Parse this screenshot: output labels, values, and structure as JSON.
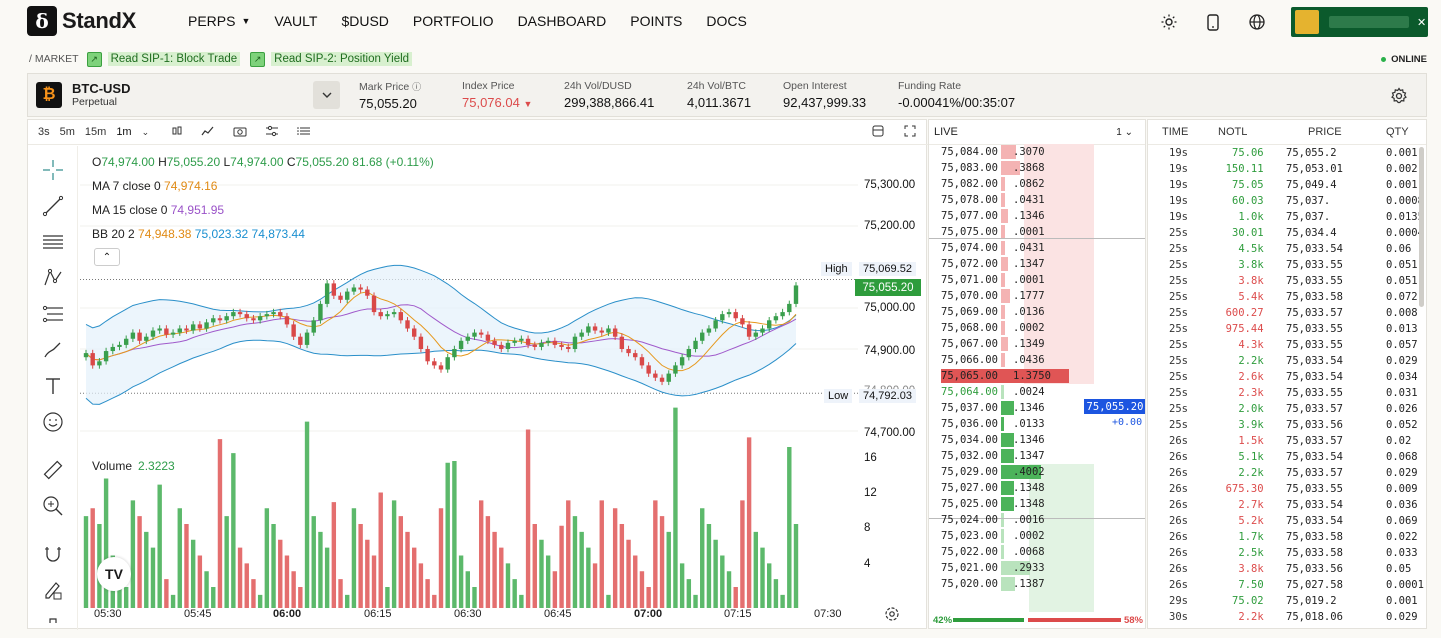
{
  "brand": {
    "name": "StandX",
    "mark": "δ"
  },
  "nav": {
    "items": [
      {
        "label": "PERPS",
        "dropdown": true
      },
      {
        "label": "VAULT"
      },
      {
        "label": "$DUSD"
      },
      {
        "label": "PORTFOLIO"
      },
      {
        "label": "DASHBOARD"
      },
      {
        "label": "POINTS"
      },
      {
        "label": "DOCS"
      }
    ],
    "icons": [
      "sun-icon",
      "mobile-icon",
      "globe-icon"
    ]
  },
  "breadcrumb": "/ MARKET",
  "announcements": [
    "Read SIP-1: Block Trade",
    "Read SIP-2: Position Yield"
  ],
  "status": "ONLINE",
  "ticker": {
    "symbol": "BTC-USD",
    "type": "Perpetual",
    "stats": [
      {
        "label": "Mark Price",
        "value": "75,055.20"
      },
      {
        "label": "Index Price",
        "value": "75,076.04"
      },
      {
        "label": "24h Vol/DUSD",
        "value": "299,388,866.41"
      },
      {
        "label": "24h Vol/BTC",
        "value": "4,011.3671"
      },
      {
        "label": "Open Interest",
        "value": "92,437,999.33"
      },
      {
        "label": "Funding Rate",
        "value": "-0.00041%/00:35:07"
      }
    ]
  },
  "chart": {
    "intervals": [
      "3s",
      "5m",
      "15m",
      "1m"
    ],
    "ohlc": {
      "o": "74,974.00",
      "h": "75,055.20",
      "l": "74,974.00",
      "c": "75,055.20",
      "chg": "81.68 (+0.11%)"
    },
    "ma7": {
      "label": "MA 7 close 0",
      "value": "74,974.16"
    },
    "ma15": {
      "label": "MA 15 close 0",
      "value": "74,951.95"
    },
    "bb": {
      "label": "BB 20 2",
      "v1": "74,948.38",
      "v2": "75,023.32",
      "v3": "74,873.44"
    },
    "yticks": [
      "75,300.00",
      "75,200.00",
      "75,000.00",
      "74,900.00",
      "74,700.00"
    ],
    "current": "75,055.20",
    "high": {
      "label": "High",
      "value": "75,069.52"
    },
    "low": {
      "label": "Low",
      "value": "74,792.03"
    },
    "low_axis_partial": "74,800.00",
    "volume": {
      "label": "Volume",
      "value": "2.3223",
      "ticks": [
        "16",
        "12",
        "8",
        "4"
      ]
    },
    "xticks": [
      "05:30",
      "05:45",
      "06:00",
      "06:15",
      "06:30",
      "06:45",
      "07:00",
      "07:15",
      "07:30"
    ]
  },
  "orderbook": {
    "title": "LIVE",
    "group": "1",
    "asks": [
      {
        "p": "75,084.00",
        "s": ".3070"
      },
      {
        "p": "75,083.00",
        "s": ".3868"
      },
      {
        "p": "75,082.00",
        "s": ".0862"
      },
      {
        "p": "75,078.00",
        "s": ".0431"
      },
      {
        "p": "75,077.00",
        "s": ".1346"
      },
      {
        "p": "75,075.00",
        "s": ".0001"
      },
      {
        "p": "75,074.00",
        "s": ".0431"
      },
      {
        "p": "75,072.00",
        "s": ".1347"
      },
      {
        "p": "75,071.00",
        "s": ".0001"
      },
      {
        "p": "75,070.00",
        "s": ".1777"
      },
      {
        "p": "75,069.00",
        "s": ".0136"
      },
      {
        "p": "75,068.00",
        "s": ".0002"
      },
      {
        "p": "75,067.00",
        "s": ".1349"
      },
      {
        "p": "75,066.00",
        "s": ".0436"
      },
      {
        "p": "75,065.00",
        "s": "1.3750"
      }
    ],
    "bids": [
      {
        "p": "75,064.00",
        "s": ".0024"
      },
      {
        "p": "75,037.00",
        "s": ".1346"
      },
      {
        "p": "75,036.00",
        "s": ".0133"
      },
      {
        "p": "75,034.00",
        "s": ".1346"
      },
      {
        "p": "75,032.00",
        "s": ".1347"
      },
      {
        "p": "75,029.00",
        "s": ".4002"
      },
      {
        "p": "75,027.00",
        "s": ".1348"
      },
      {
        "p": "75,025.00",
        "s": ".1348"
      },
      {
        "p": "75,024.00",
        "s": ".0016"
      },
      {
        "p": "75,023.00",
        "s": ".0002"
      },
      {
        "p": "75,022.00",
        "s": ".0068"
      },
      {
        "p": "75,021.00",
        "s": ".2933"
      },
      {
        "p": "75,020.00",
        "s": ".1387"
      }
    ],
    "mid": "75,055.20",
    "mid_change": "+0.00",
    "bid_pct": "42%",
    "ask_pct": "58%"
  },
  "trades": {
    "headers": [
      "TIME",
      "NOTL",
      "PRICE",
      "QTY"
    ],
    "rows": [
      {
        "t": "19s",
        "n": "75.06",
        "p": "75,055.2",
        "q": "0.001",
        "side": "buy"
      },
      {
        "t": "19s",
        "n": "150.11",
        "p": "75,053.01",
        "q": "0.002",
        "side": "buy"
      },
      {
        "t": "19s",
        "n": "75.05",
        "p": "75,049.4",
        "q": "0.001",
        "side": "buy"
      },
      {
        "t": "19s",
        "n": "60.03",
        "p": "75,037.",
        "q": "0.0008",
        "side": "buy"
      },
      {
        "t": "19s",
        "n": "1.0k",
        "p": "75,037.",
        "q": "0.0135",
        "side": "buy"
      },
      {
        "t": "25s",
        "n": "30.01",
        "p": "75,034.4",
        "q": "0.0004",
        "side": "buy"
      },
      {
        "t": "25s",
        "n": "4.5k",
        "p": "75,033.54",
        "q": "0.06",
        "side": "buy"
      },
      {
        "t": "25s",
        "n": "3.8k",
        "p": "75,033.55",
        "q": "0.051",
        "side": "buy"
      },
      {
        "t": "25s",
        "n": "3.8k",
        "p": "75,033.55",
        "q": "0.051",
        "side": "sell"
      },
      {
        "t": "25s",
        "n": "5.4k",
        "p": "75,033.58",
        "q": "0.072",
        "side": "sell"
      },
      {
        "t": "25s",
        "n": "600.27",
        "p": "75,033.57",
        "q": "0.008",
        "side": "sell"
      },
      {
        "t": "25s",
        "n": "975.44",
        "p": "75,033.55",
        "q": "0.013",
        "side": "sell"
      },
      {
        "t": "25s",
        "n": "4.3k",
        "p": "75,033.55",
        "q": "0.057",
        "side": "sell"
      },
      {
        "t": "25s",
        "n": "2.2k",
        "p": "75,033.54",
        "q": "0.029",
        "side": "buy"
      },
      {
        "t": "25s",
        "n": "2.6k",
        "p": "75,033.54",
        "q": "0.034",
        "side": "sell"
      },
      {
        "t": "25s",
        "n": "2.3k",
        "p": "75,033.55",
        "q": "0.031",
        "side": "sell"
      },
      {
        "t": "25s",
        "n": "2.0k",
        "p": "75,033.57",
        "q": "0.026",
        "side": "buy"
      },
      {
        "t": "25s",
        "n": "3.9k",
        "p": "75,033.56",
        "q": "0.052",
        "side": "buy"
      },
      {
        "t": "26s",
        "n": "1.5k",
        "p": "75,033.57",
        "q": "0.02",
        "side": "sell"
      },
      {
        "t": "26s",
        "n": "5.1k",
        "p": "75,033.54",
        "q": "0.068",
        "side": "buy"
      },
      {
        "t": "26s",
        "n": "2.2k",
        "p": "75,033.57",
        "q": "0.029",
        "side": "buy"
      },
      {
        "t": "26s",
        "n": "675.30",
        "p": "75,033.55",
        "q": "0.009",
        "side": "sell"
      },
      {
        "t": "26s",
        "n": "2.7k",
        "p": "75,033.54",
        "q": "0.036",
        "side": "sell"
      },
      {
        "t": "26s",
        "n": "5.2k",
        "p": "75,033.54",
        "q": "0.069",
        "side": "sell"
      },
      {
        "t": "26s",
        "n": "1.7k",
        "p": "75,033.58",
        "q": "0.022",
        "side": "buy"
      },
      {
        "t": "26s",
        "n": "2.5k",
        "p": "75,033.58",
        "q": "0.033",
        "side": "buy"
      },
      {
        "t": "26s",
        "n": "3.8k",
        "p": "75,033.56",
        "q": "0.05",
        "side": "sell"
      },
      {
        "t": "26s",
        "n": "7.50",
        "p": "75,027.58",
        "q": "0.0001",
        "side": "buy"
      },
      {
        "t": "29s",
        "n": "75.02",
        "p": "75,019.2",
        "q": "0.001",
        "side": "buy"
      },
      {
        "t": "30s",
        "n": "2.2k",
        "p": "75,018.06",
        "q": "0.029",
        "side": "sell"
      }
    ]
  },
  "colors": {
    "up": "#2e9c3c",
    "down": "#dc4b4b",
    "accent": "#1c55e0"
  }
}
